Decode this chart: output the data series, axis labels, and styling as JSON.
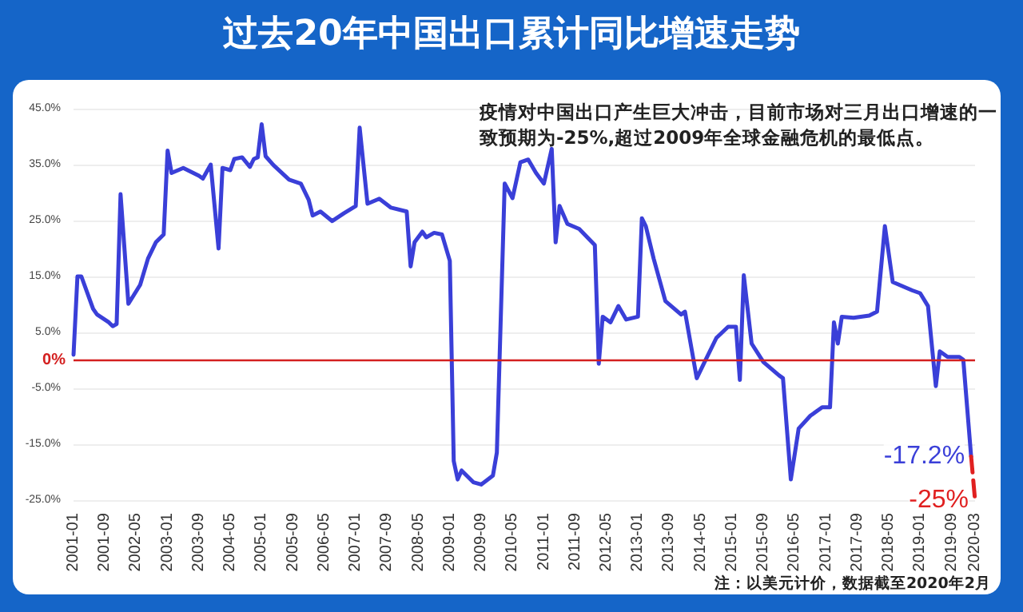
{
  "chart_data": {
    "type": "line",
    "title": "过去20年中国出口累计同比增速走势",
    "annotations": [
      "疫情对中国出口产生巨大冲击，目前市场对三月出口增速的一致预期为-25%,超过2009年全球金融危机的最低点。",
      "注：以美元计价，数据截至2020年2月"
    ],
    "series": [
      {
        "color": "#3a3fd8",
        "x": [
          "2001-01",
          "2001-02",
          "2001-03",
          "2001-06",
          "2001-07",
          "2001-10",
          "2001-11",
          "2001-12",
          "2002-01",
          "2002-03",
          "2002-06",
          "2002-08",
          "2002-10",
          "2002-12",
          "2003-01",
          "2003-02",
          "2003-05",
          "2003-09",
          "2003-10",
          "2003-12",
          "2004-02",
          "2004-03",
          "2004-05",
          "2004-06",
          "2004-08",
          "2004-10",
          "2004-11",
          "2004-12",
          "2005-01",
          "2005-02",
          "2005-04",
          "2005-08",
          "2005-11",
          "2006-01",
          "2006-02",
          "2006-04",
          "2006-07",
          "2006-10",
          "2007-01",
          "2007-02",
          "2007-04",
          "2007-07",
          "2007-10",
          "2008-02",
          "2008-03",
          "2008-04",
          "2008-06",
          "2008-07",
          "2008-09",
          "2008-11",
          "2009-01",
          "2009-02",
          "2009-03",
          "2009-04",
          "2009-07",
          "2009-09",
          "2009-12",
          "2010-01",
          "2010-03",
          "2010-05",
          "2010-07",
          "2010-09",
          "2010-11",
          "2011-01",
          "2011-03",
          "2011-04",
          "2011-05",
          "2011-07",
          "2011-10",
          "2012-02",
          "2012-03",
          "2012-04",
          "2012-06",
          "2012-08",
          "2012-10",
          "2013-01",
          "2013-02",
          "2013-03",
          "2013-05",
          "2013-08",
          "2013-12",
          "2014-01",
          "2014-04",
          "2014-06",
          "2014-09",
          "2014-12",
          "2015-02",
          "2015-03",
          "2015-04",
          "2015-06",
          "2015-09",
          "2016-01",
          "2016-02",
          "2016-04",
          "2016-06",
          "2016-09",
          "2016-12",
          "2017-02",
          "2017-03",
          "2017-04",
          "2017-05",
          "2017-08",
          "2017-12",
          "2018-02",
          "2018-04",
          "2018-06",
          "2018-11",
          "2019-01",
          "2019-03",
          "2019-05",
          "2019-06",
          "2019-08",
          "2019-11",
          "2019-12",
          "2020-02"
        ],
        "values": [
          1,
          15,
          15,
          9.2,
          8.2,
          6.8,
          6.1,
          6.5,
          29.7,
          10.1,
          13.5,
          18.2,
          21.1,
          22.5,
          37.5,
          33.5,
          34.4,
          33,
          32.5,
          35,
          20,
          34.4,
          34,
          36,
          36.3,
          34.6,
          36,
          36.3,
          42.2,
          36.5,
          34.9,
          32.3,
          31.6,
          28.7,
          25.9,
          26.6,
          24.9,
          26.3,
          27.6,
          41.6,
          28,
          28.9,
          27.3,
          26.6,
          16.8,
          21.1,
          23,
          22,
          22.8,
          22.5,
          17.8,
          -18,
          -21.3,
          -19.7,
          -21.8,
          -22.2,
          -20.6,
          -16.5,
          31.6,
          29,
          35.4,
          35.9,
          33.5,
          31.6,
          37.8,
          21.1,
          27.6,
          24.4,
          23.5,
          20.6,
          -0.6,
          7.8,
          6.8,
          9.7,
          7.3,
          7.8,
          25.4,
          24,
          18.2,
          10.6,
          8.2,
          8.7,
          -3.2,
          -0.3,
          4,
          6,
          6,
          -3.5,
          15.2,
          3,
          -0.3,
          -2.7,
          -3.2,
          -21.3,
          -12.2,
          -9.9,
          -8.4,
          -8.4,
          6.8,
          3,
          7.8,
          7.6,
          8,
          8.7,
          24,
          14,
          12.5,
          12,
          9.7,
          -4.6,
          1.6,
          0.6,
          0.6,
          0.1,
          -17.2
        ],
        "value_labels": [
          null,
          null,
          null,
          null,
          null,
          null,
          null,
          null,
          null,
          null,
          null,
          null,
          null,
          null,
          null,
          null,
          null,
          null,
          null,
          null,
          null,
          null,
          null,
          null,
          null,
          null,
          null,
          null,
          null,
          null,
          null,
          null,
          null,
          null,
          null,
          null,
          null,
          null,
          null,
          null,
          null,
          null,
          null,
          null,
          null,
          null,
          null,
          null,
          null,
          null,
          null,
          null,
          null,
          null,
          null,
          null,
          null,
          null,
          null,
          null,
          null,
          null,
          null,
          null,
          null,
          null,
          null,
          null,
          null,
          null,
          null,
          null,
          null,
          null,
          null,
          null,
          null,
          null,
          null,
          null,
          null,
          null,
          null,
          null,
          null,
          null,
          null,
          null,
          null,
          null,
          null,
          null,
          null,
          null,
          null,
          null,
          null,
          null,
          null,
          null,
          null,
          null,
          null,
          null,
          null,
          null,
          null,
          null,
          null,
          null,
          null,
          null,
          null,
          null,
          "-17.2%"
        ]
      },
      {
        "color": "#e02020",
        "line_style": "dashed",
        "x": [
          "2020-02",
          "2020-03"
        ],
        "values": [
          -17.2,
          -25
        ],
        "value_labels": [
          null,
          "-25%"
        ]
      }
    ],
    "xlim": [
      "2001-01",
      "2020-03"
    ],
    "xticks": [
      "2001-01",
      "2001-09",
      "2002-05",
      "2003-01",
      "2003-09",
      "2004-05",
      "2005-01",
      "2005-09",
      "2006-05",
      "2007-01",
      "2007-09",
      "2008-05",
      "2009-01",
      "2009-09",
      "2010-05",
      "2011-01",
      "2011-09",
      "2012-05",
      "2013-01",
      "2013-09",
      "2014-05",
      "2015-01",
      "2015-09",
      "2016-05",
      "2017-01",
      "2017-09",
      "2018-05",
      "2019-01",
      "2019-09",
      "2020-03"
    ],
    "ylim": [
      -25,
      45
    ],
    "yticks": [
      {
        "value": -25,
        "label": "-25.0%"
      },
      {
        "value": -15,
        "label": "-15.0%"
      },
      {
        "value": -5,
        "label": "-5.0%"
      },
      {
        "value": 5,
        "label": "5.0%"
      },
      {
        "value": 15,
        "label": "15.0%"
      },
      {
        "value": 25,
        "label": "25.0%"
      },
      {
        "value": 35,
        "label": "35.0%"
      },
      {
        "value": 45,
        "label": "45.0%"
      }
    ],
    "ref_lines": [
      {
        "axis": "y",
        "value": 0,
        "label": "0%",
        "color": "#d42020"
      }
    ],
    "grid": "y",
    "marker": "none"
  }
}
